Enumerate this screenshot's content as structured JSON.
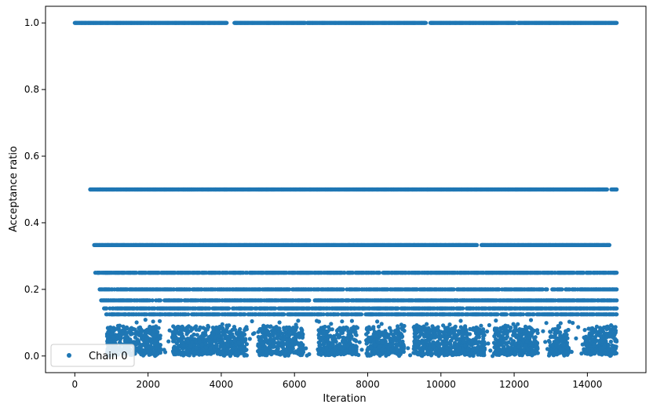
{
  "chart_data": {
    "type": "scatter",
    "title": "",
    "xlabel": "Iteration",
    "ylabel": "Acceptance ratio",
    "xlim": [
      -800,
      15600
    ],
    "ylim": [
      -0.05,
      1.05
    ],
    "xticks": [
      0,
      2000,
      4000,
      6000,
      8000,
      10000,
      12000,
      14000
    ],
    "xtick_labels": [
      "0",
      "2000",
      "4000",
      "6000",
      "8000",
      "10000",
      "12000",
      "14000"
    ],
    "yticks": [
      0.0,
      0.2,
      0.4,
      0.6,
      0.8,
      1.0
    ],
    "ytick_labels": [
      "0.0",
      "0.2",
      "0.4",
      "0.6",
      "0.8",
      "1.0"
    ],
    "grid": false,
    "legend": {
      "position": "lower-left",
      "entries": [
        "Chain 0"
      ]
    },
    "marker_color": "#1f77b4",
    "series": [
      {
        "name": "Chain 0",
        "levels": [
          {
            "y": 1.0,
            "x_range": [
              0,
              14800
            ],
            "gaps": [
              [
                4150,
                4350
              ],
              [
                6300,
                6350
              ],
              [
                9600,
                9700
              ],
              [
                12050,
                12100
              ]
            ]
          },
          {
            "y": 0.5,
            "x_range": [
              420,
              14800
            ],
            "gaps": [
              [
                14550,
                14650
              ]
            ]
          },
          {
            "y": 0.333,
            "x_range": [
              530,
              14600
            ],
            "gaps": [
              [
                11000,
                11100
              ]
            ]
          },
          {
            "y": 0.25,
            "x_range": [
              560,
              14800
            ],
            "gaps": [
              [
                7600,
                7650
              ]
            ]
          },
          {
            "y": 0.2,
            "x_range": [
              680,
              14800
            ],
            "gaps": []
          },
          {
            "y": 0.167,
            "x_range": [
              720,
              14800
            ],
            "gaps": [
              [
                2350,
                2450
              ]
            ]
          },
          {
            "y": 0.143,
            "x_range": [
              800,
              14800
            ],
            "gaps": []
          },
          {
            "y": 0.125,
            "x_range": [
              860,
              14800
            ],
            "gaps": []
          }
        ],
        "low_cluster": {
          "y_range": [
            0.0,
            0.11
          ],
          "x_range": [
            880,
            14800
          ],
          "dense_segments": [
            [
              880,
              2350
            ],
            [
              2650,
              4700
            ],
            [
              5000,
              6250
            ],
            [
              6650,
              7700
            ],
            [
              7950,
              9000
            ],
            [
              9250,
              11200
            ],
            [
              11450,
              12650
            ],
            [
              12950,
              13500
            ],
            [
              13900,
              14800
            ]
          ]
        }
      }
    ]
  }
}
